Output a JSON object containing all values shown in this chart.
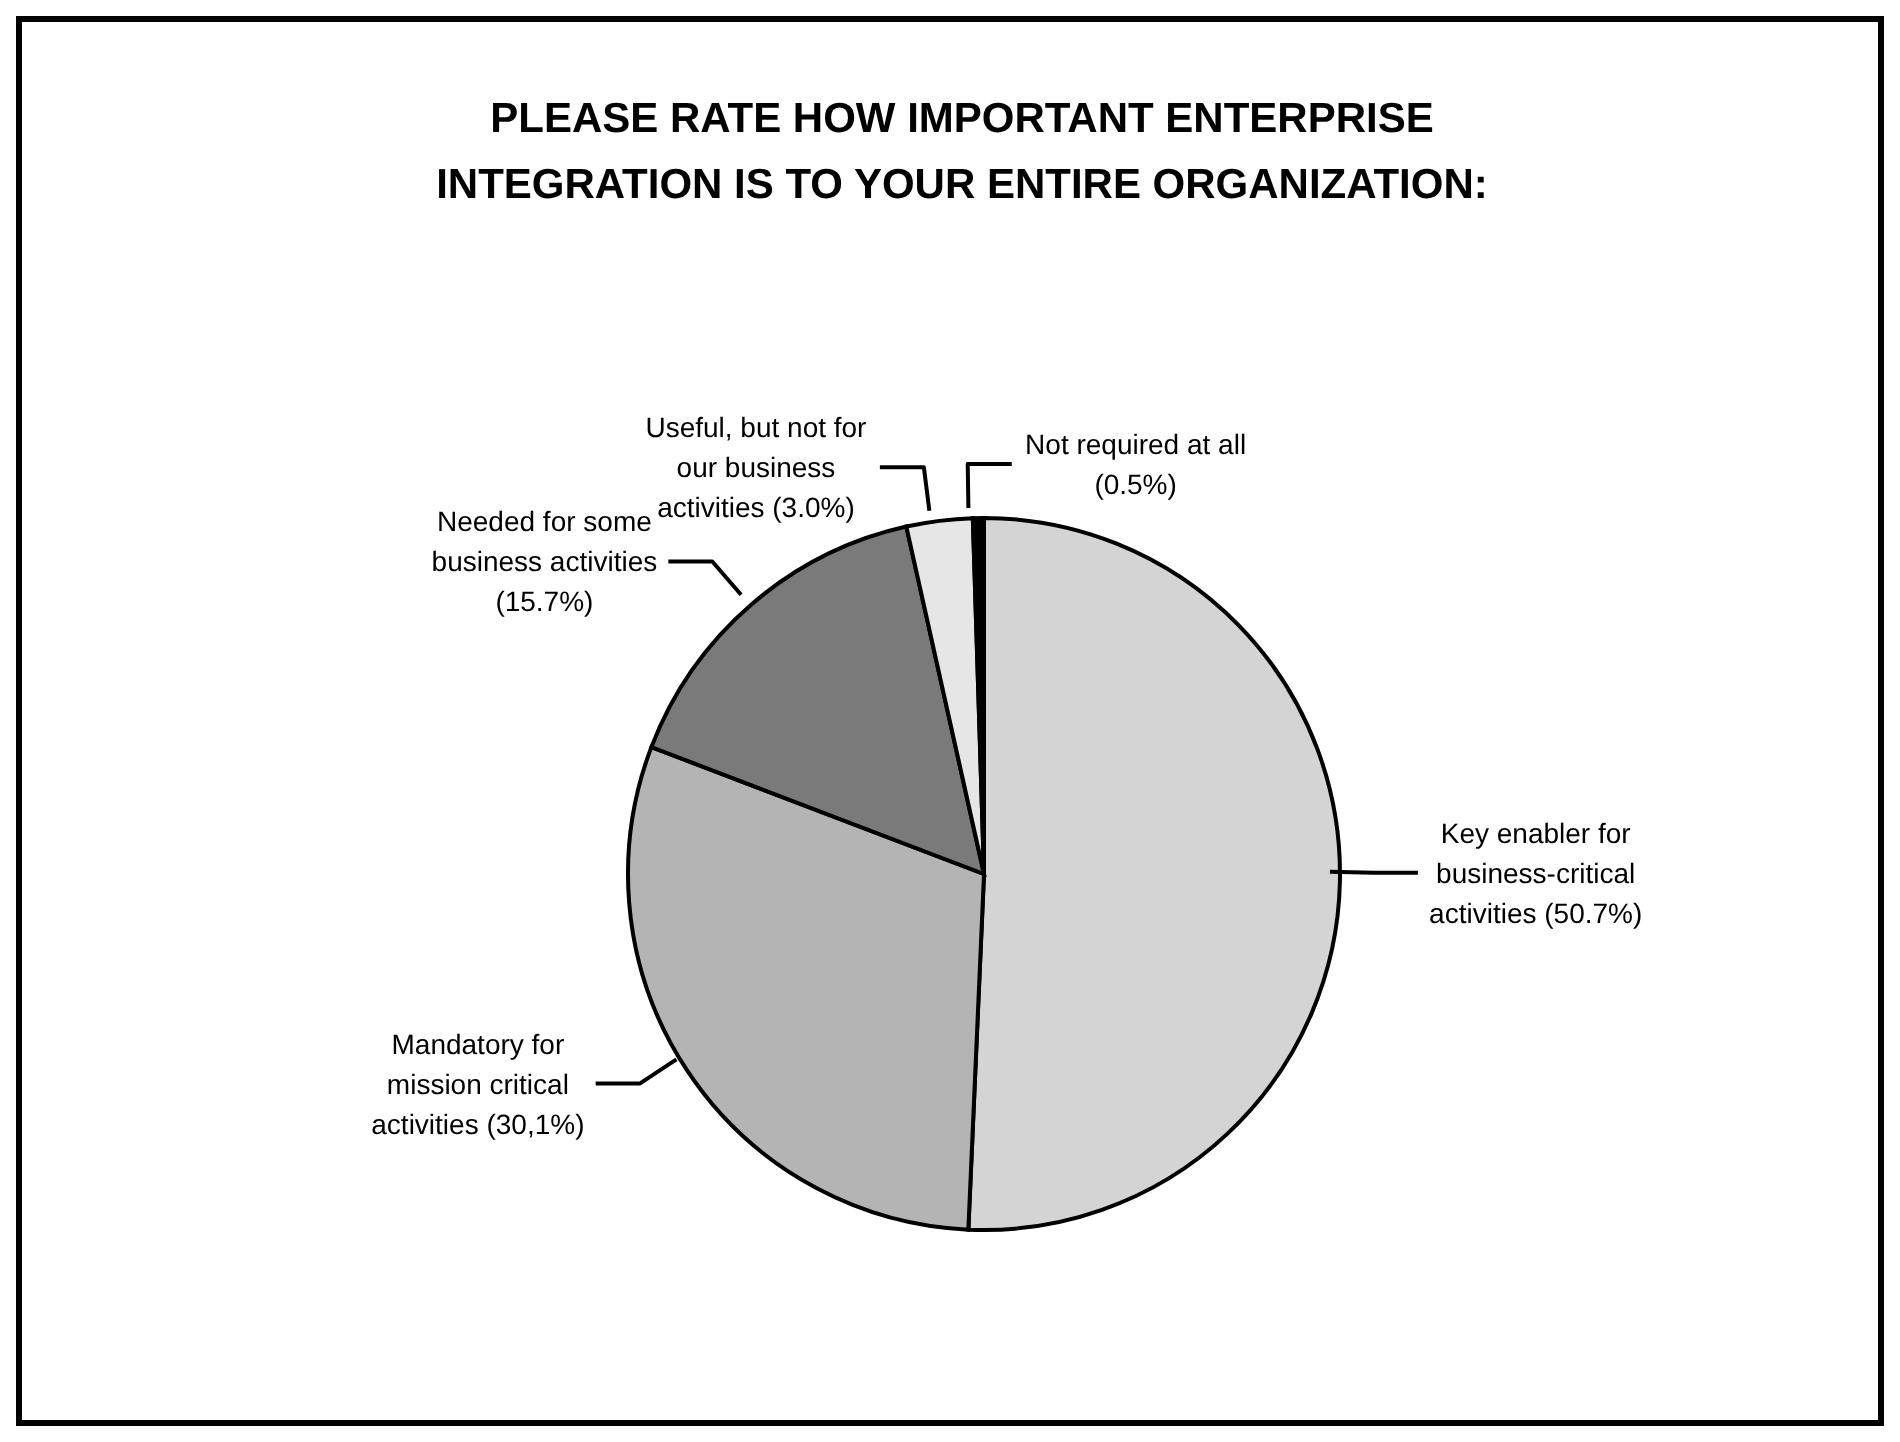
{
  "chart_data": {
    "type": "pie",
    "title": "PLEASE RATE HOW IMPORTANT ENTERPRISE INTEGRATION IS TO YOUR ENTIRE ORGANIZATION:",
    "categories": [
      "Key enabler for business-critical activities",
      "Mandatory for mission critical activities",
      "Needed for some business activities",
      "Useful, but not for our business activities",
      "Not required at all"
    ],
    "values": [
      50.7,
      30.1,
      15.7,
      3.0,
      0.5
    ],
    "value_labels": [
      "(50.7%)",
      "(30,1%)",
      "(15.7%)",
      "(3.0%)",
      "(0.5%)"
    ],
    "colors": [
      "#d4d4d4",
      "#b4b4b4",
      "#7a7a7a",
      "#e6e6e6",
      "#000000"
    ]
  }
}
